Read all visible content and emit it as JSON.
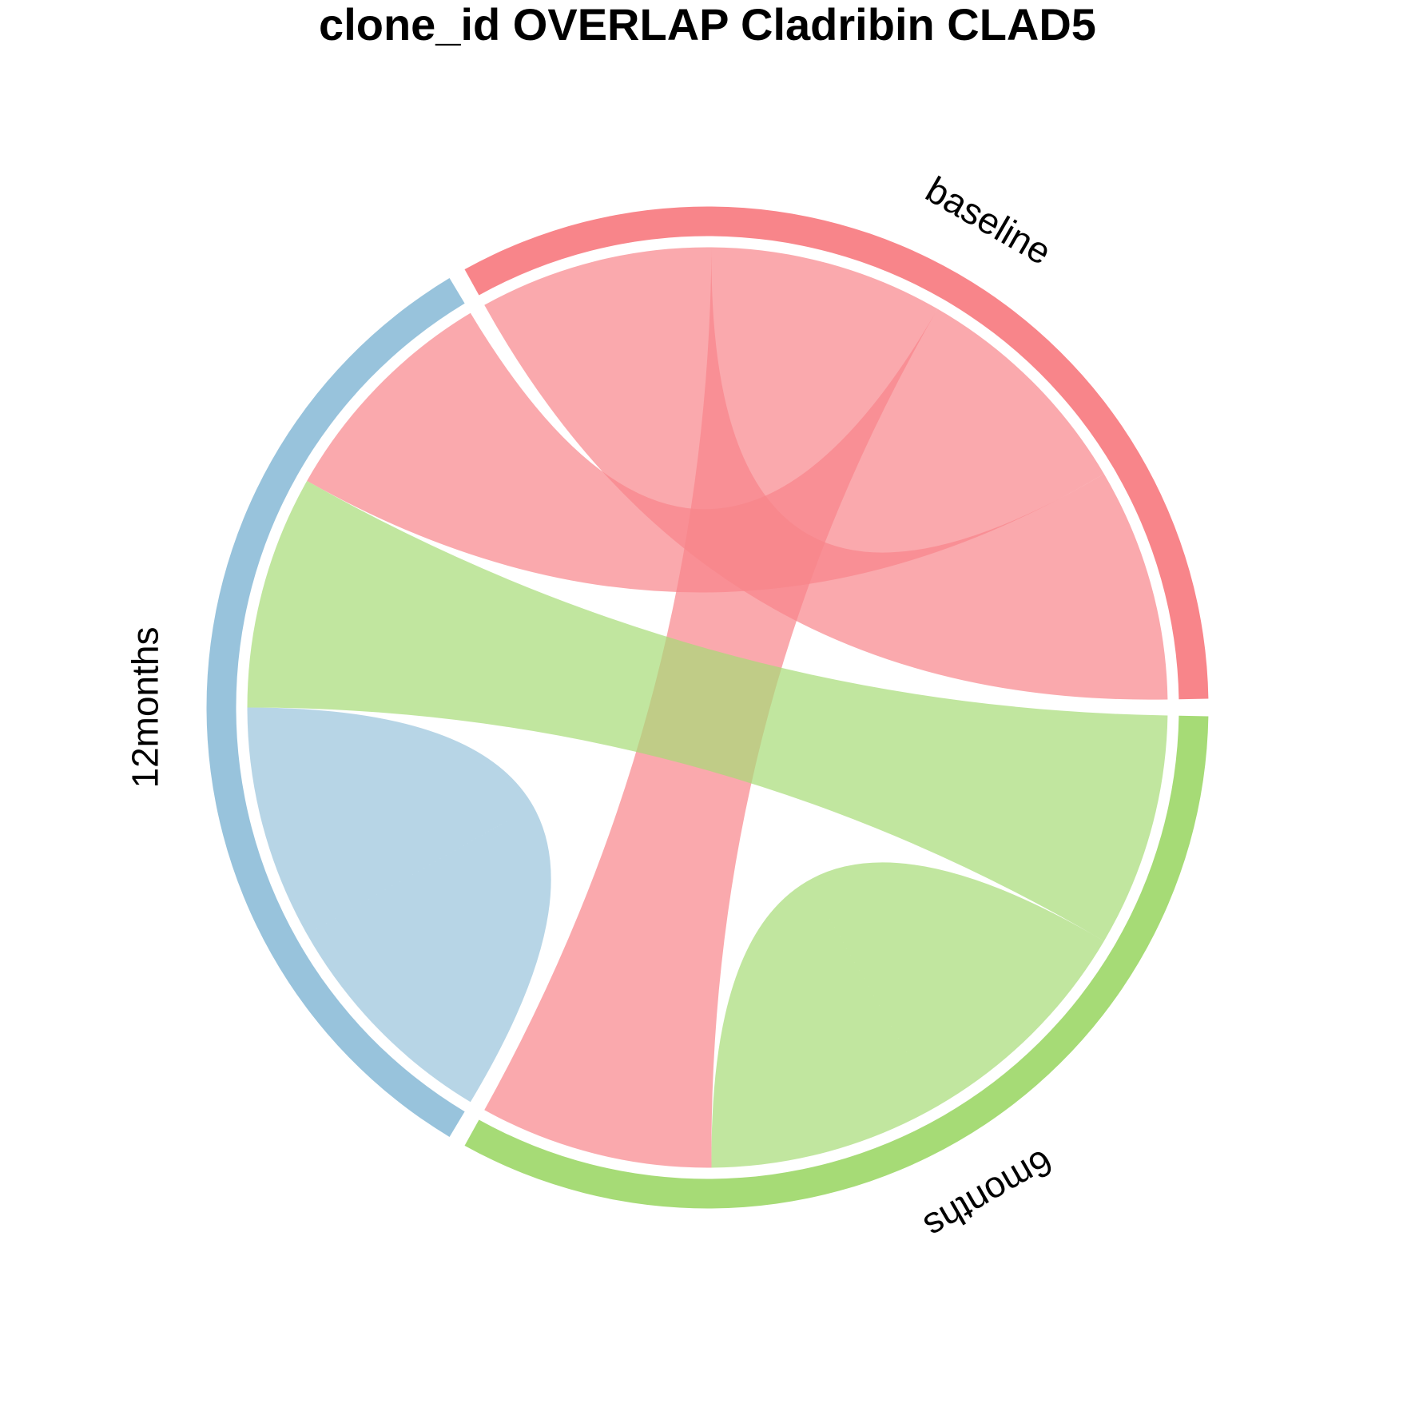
{
  "chart_data": {
    "type": "chord",
    "title": "clone_id OVERLAP Cladribin CLAD5",
    "sectors": [
      {
        "name": "baseline",
        "color": "#F8858A"
      },
      {
        "name": "6months",
        "color": "#A6DB76"
      },
      {
        "name": "12months",
        "color": "#98C3DC"
      }
    ],
    "sector_order_counterclockwise": [
      "baseline",
      "12months",
      "6months"
    ],
    "links": [
      {
        "from": "baseline",
        "to": "baseline",
        "value": 1,
        "color": "#F8858A"
      },
      {
        "from": "baseline",
        "to": "6months",
        "value": 1,
        "color": "#F8858A"
      },
      {
        "from": "baseline",
        "to": "12months",
        "value": 1,
        "color": "#F8858A"
      },
      {
        "from": "6months",
        "to": "6months",
        "value": 1,
        "color": "#A6DB76"
      },
      {
        "from": "6months",
        "to": "12months",
        "value": 1,
        "color": "#A6DB76"
      },
      {
        "from": "12months",
        "to": "12months",
        "value": 1,
        "color": "#98C3DC"
      }
    ],
    "link_alpha": 0.7
  }
}
